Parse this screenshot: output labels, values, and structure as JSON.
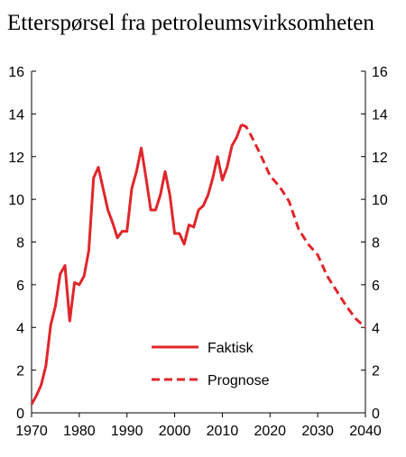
{
  "chart_data": {
    "type": "line",
    "title": "Etterspørsel fra petroleumsvirksomheten",
    "xlabel": "",
    "ylabel": "",
    "xlim": [
      1970,
      2040
    ],
    "ylim": [
      0,
      16
    ],
    "x_ticks": [
      "1970",
      "1980",
      "1990",
      "2000",
      "2010",
      "2020",
      "2030",
      "2040"
    ],
    "y_ticks": [
      "0",
      "2",
      "4",
      "6",
      "8",
      "10",
      "12",
      "14",
      "16"
    ],
    "grid": false,
    "legend_placement": "bottom-center",
    "series": [
      {
        "name": "Faktisk",
        "style": "solid",
        "color": "#e0262b",
        "x": [
          1970,
          1971,
          1972,
          1973,
          1974,
          1975,
          1976,
          1977,
          1978,
          1979,
          1980,
          1981,
          1982,
          1983,
          1984,
          1985,
          1986,
          1987,
          1988,
          1989,
          1990,
          1991,
          1992,
          1993,
          1994,
          1995,
          1996,
          1997,
          1998,
          1999,
          2000,
          2001,
          2002,
          2003,
          2004,
          2005,
          2006,
          2007,
          2008,
          2009,
          2010,
          2011,
          2012,
          2013,
          2014
        ],
        "y": [
          0.4,
          0.8,
          1.3,
          2.2,
          4.1,
          5.0,
          6.5,
          6.9,
          4.3,
          6.1,
          6.0,
          6.4,
          7.6,
          11.0,
          11.5,
          10.5,
          9.5,
          8.9,
          8.2,
          8.5,
          8.5,
          10.5,
          11.3,
          12.4,
          11.0,
          9.5,
          9.5,
          10.2,
          11.3,
          10.2,
          8.4,
          8.4,
          7.9,
          8.8,
          8.7,
          9.5,
          9.7,
          10.2,
          11.0,
          12.0,
          10.9,
          11.5,
          12.5,
          12.9,
          13.5
        ]
      },
      {
        "name": "Prognose",
        "style": "dashed",
        "color": "#e0262b",
        "x": [
          2014,
          2015,
          2016,
          2018,
          2020,
          2022,
          2024,
          2026,
          2028,
          2030,
          2032,
          2034,
          2036,
          2038,
          2040
        ],
        "y": [
          13.5,
          13.4,
          13.0,
          12.1,
          11.1,
          10.6,
          9.9,
          8.6,
          7.9,
          7.4,
          6.4,
          5.7,
          5.0,
          4.4,
          4.0
        ]
      }
    ]
  }
}
